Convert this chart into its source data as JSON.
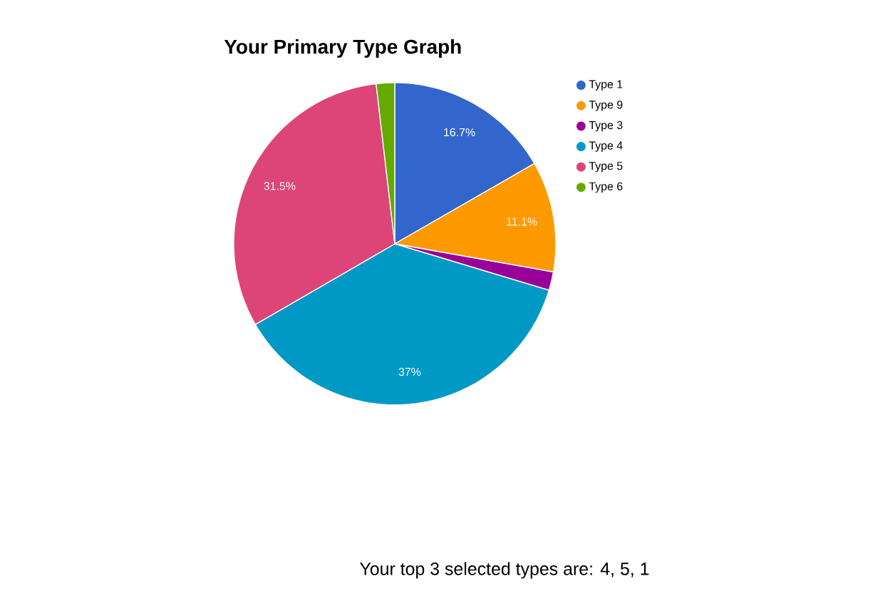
{
  "chart_data": {
    "type": "pie",
    "title": "Your Primary Type Graph",
    "categories": [
      "Type 1",
      "Type 9",
      "Type 3",
      "Type 4",
      "Type 5",
      "Type 6"
    ],
    "values": [
      16.7,
      11.1,
      1.85,
      37,
      31.5,
      1.85
    ],
    "colors": [
      "#3366cc",
      "#ff9900",
      "#990099",
      "#0099c6",
      "#dd4477",
      "#66aa00"
    ],
    "value_labels": [
      "16.7%",
      "11.1%",
      null,
      "37%",
      "31.5%",
      null
    ],
    "legend": "top right",
    "annotations": [
      "Your top 3 selected types are: 4, 5, 1"
    ]
  }
}
